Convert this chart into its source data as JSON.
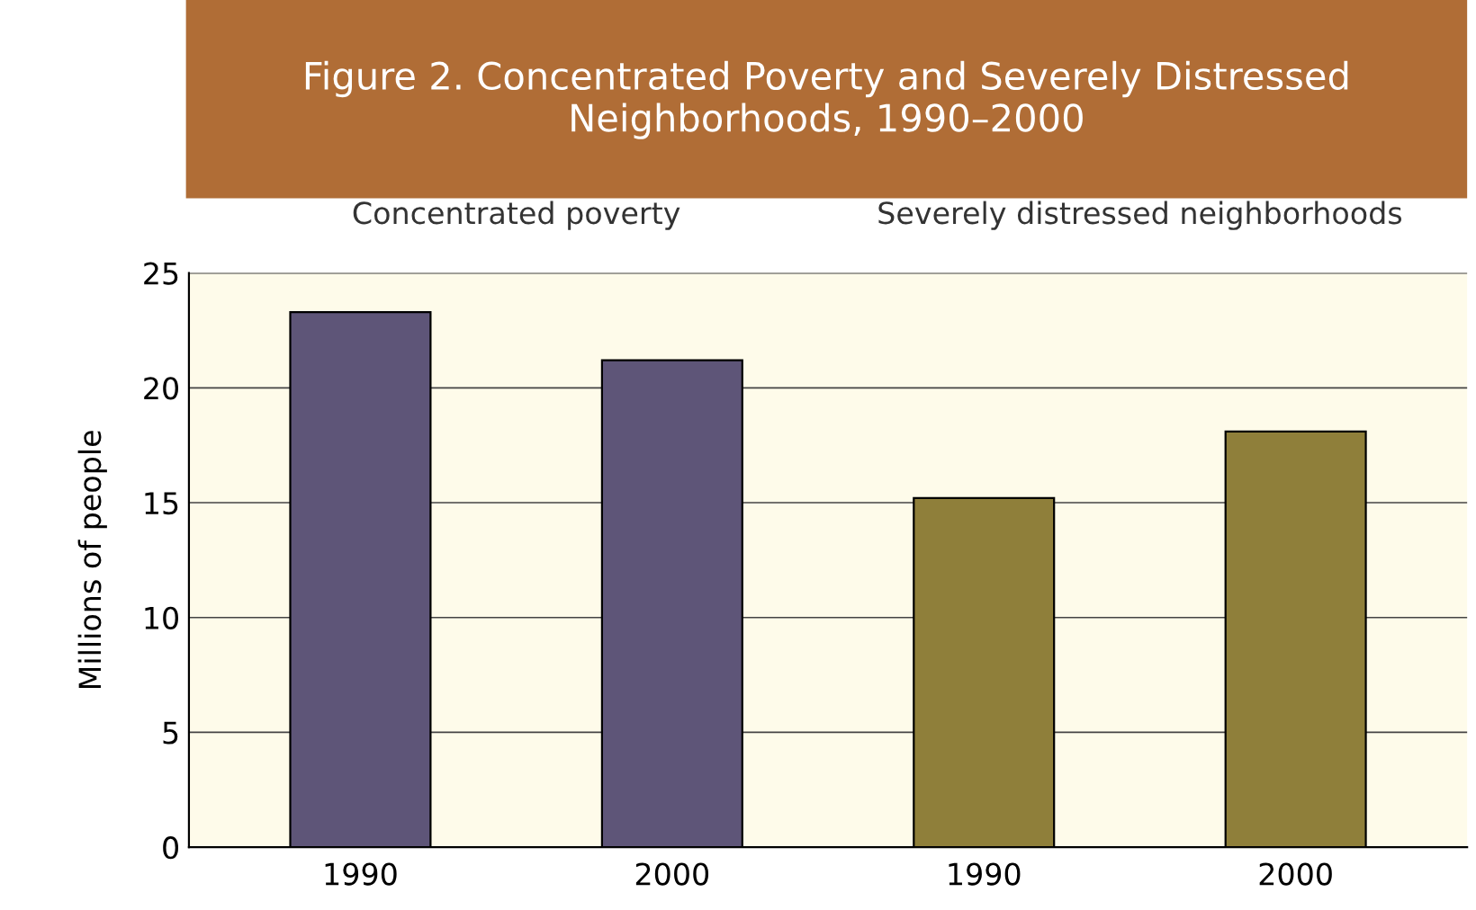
{
  "chart_data": {
    "type": "bar",
    "title": "Figure 2. Concentrated Poverty and Severely Distressed Neighborhoods, 1990–2000",
    "ylabel": "Millions of people",
    "categories": [
      "1990",
      "2000",
      "1990",
      "2000"
    ],
    "values": [
      23.3,
      21.2,
      15.2,
      18.1
    ],
    "colors": [
      "#5e5578",
      "#5e5578",
      "#8f7f3a",
      "#8f7f3a"
    ],
    "annotations": [
      "Concentrated poverty",
      "Severely distressed neighborhoods"
    ],
    "ylim": [
      0,
      25
    ],
    "yticks": [
      0,
      5,
      10,
      15,
      20,
      25
    ],
    "grid": "y"
  }
}
